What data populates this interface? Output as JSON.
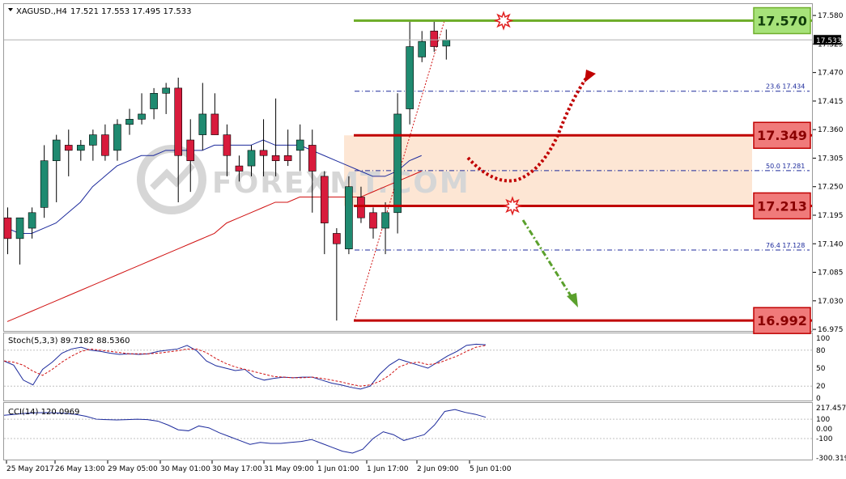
{
  "header": {
    "symbol": "XAGUSD.,H4",
    "ohlc": "17.521 17.553 17.495 17.533"
  },
  "chart_data": {
    "type": "candlestick",
    "price_axis": {
      "ylim": [
        16.972,
        17.602
      ],
      "ticks": [
        "17.580",
        "17.525",
        "17.470",
        "17.415",
        "17.360",
        "17.305",
        "17.250",
        "17.195",
        "17.140",
        "17.085",
        "17.030",
        "16.975"
      ],
      "current_price": "17.533"
    },
    "time_axis": {
      "labels": [
        "25 May 2017",
        "26 May 13:00",
        "29 May 05:00",
        "30 May 01:00",
        "30 May 17:00",
        "31 May 09:00",
        "1 Jun 01:00",
        "1 Jun 17:00",
        "2 Jun 09:00",
        "5 Jun 01:00"
      ]
    },
    "candles": [
      {
        "o": 17.19,
        "h": 17.21,
        "l": 17.12,
        "c": 17.15
      },
      {
        "o": 17.15,
        "h": 17.19,
        "l": 17.1,
        "c": 17.19
      },
      {
        "o": 17.17,
        "h": 17.21,
        "l": 17.15,
        "c": 17.2
      },
      {
        "o": 17.21,
        "h": 17.33,
        "l": 17.19,
        "c": 17.3
      },
      {
        "o": 17.3,
        "h": 17.35,
        "l": 17.22,
        "c": 17.34
      },
      {
        "o": 17.33,
        "h": 17.36,
        "l": 17.27,
        "c": 17.32
      },
      {
        "o": 17.32,
        "h": 17.34,
        "l": 17.3,
        "c": 17.33
      },
      {
        "o": 17.33,
        "h": 17.36,
        "l": 17.3,
        "c": 17.35
      },
      {
        "o": 17.35,
        "h": 17.37,
        "l": 17.3,
        "c": 17.31
      },
      {
        "o": 17.32,
        "h": 17.38,
        "l": 17.3,
        "c": 17.37
      },
      {
        "o": 17.37,
        "h": 17.4,
        "l": 17.35,
        "c": 17.38
      },
      {
        "o": 17.38,
        "h": 17.43,
        "l": 17.37,
        "c": 17.39
      },
      {
        "o": 17.4,
        "h": 17.44,
        "l": 17.38,
        "c": 17.43
      },
      {
        "o": 17.43,
        "h": 17.45,
        "l": 17.39,
        "c": 17.44
      },
      {
        "o": 17.44,
        "h": 17.46,
        "l": 17.22,
        "c": 17.31
      },
      {
        "o": 17.34,
        "h": 17.38,
        "l": 17.24,
        "c": 17.3
      },
      {
        "o": 17.35,
        "h": 17.45,
        "l": 17.32,
        "c": 17.39
      },
      {
        "o": 17.39,
        "h": 17.43,
        "l": 17.35,
        "c": 17.35
      },
      {
        "o": 17.35,
        "h": 17.37,
        "l": 17.27,
        "c": 17.31
      },
      {
        "o": 17.29,
        "h": 17.31,
        "l": 17.26,
        "c": 17.28
      },
      {
        "o": 17.29,
        "h": 17.33,
        "l": 17.27,
        "c": 17.32
      },
      {
        "o": 17.32,
        "h": 17.38,
        "l": 17.27,
        "c": 17.31
      },
      {
        "o": 17.31,
        "h": 17.42,
        "l": 17.27,
        "c": 17.3
      },
      {
        "o": 17.31,
        "h": 17.36,
        "l": 17.29,
        "c": 17.3
      },
      {
        "o": 17.32,
        "h": 17.37,
        "l": 17.28,
        "c": 17.34
      },
      {
        "o": 17.33,
        "h": 17.36,
        "l": 17.2,
        "c": 17.28
      },
      {
        "o": 17.27,
        "h": 17.28,
        "l": 17.12,
        "c": 17.18
      },
      {
        "o": 17.16,
        "h": 17.17,
        "l": 16.992,
        "c": 17.14
      },
      {
        "o": 17.13,
        "h": 17.27,
        "l": 17.12,
        "c": 17.25
      },
      {
        "o": 17.23,
        "h": 17.25,
        "l": 17.18,
        "c": 17.19
      },
      {
        "o": 17.2,
        "h": 17.21,
        "l": 17.15,
        "c": 17.17
      },
      {
        "o": 17.17,
        "h": 17.22,
        "l": 17.12,
        "c": 17.2
      },
      {
        "o": 17.2,
        "h": 17.43,
        "l": 17.16,
        "c": 17.39
      },
      {
        "o": 17.4,
        "h": 17.57,
        "l": 17.37,
        "c": 17.52
      },
      {
        "o": 17.5,
        "h": 17.55,
        "l": 17.49,
        "c": 17.53
      },
      {
        "o": 17.55,
        "h": 17.57,
        "l": 17.51,
        "c": 17.52
      },
      {
        "o": 17.521,
        "h": 17.553,
        "l": 17.495,
        "c": 17.533
      }
    ],
    "moving_averages": [
      {
        "color": "#1c2a9c",
        "values": [
          17.17,
          17.16,
          17.16,
          17.17,
          17.18,
          17.2,
          17.22,
          17.25,
          17.27,
          17.29,
          17.3,
          17.31,
          17.31,
          17.32,
          17.32,
          17.32,
          17.32,
          17.33,
          17.33,
          17.33,
          17.33,
          17.34,
          17.33,
          17.33,
          17.33,
          17.32,
          17.31,
          17.3,
          17.29,
          17.28,
          17.27,
          17.27,
          17.28,
          17.3,
          17.31
        ]
      },
      {
        "color": "#d01010",
        "values": [
          16.99,
          17.0,
          17.01,
          17.02,
          17.03,
          17.04,
          17.05,
          17.06,
          17.07,
          17.08,
          17.09,
          17.1,
          17.11,
          17.12,
          17.13,
          17.14,
          17.15,
          17.16,
          17.18,
          17.19,
          17.2,
          17.21,
          17.22,
          17.22,
          17.23,
          17.23,
          17.23,
          17.23,
          17.23,
          17.23,
          17.24,
          17.25,
          17.26,
          17.27,
          17.28
        ]
      }
    ],
    "levels": [
      {
        "value": 17.57,
        "label": "17.570",
        "color": "#6fae2b",
        "badge_bg": "#a6e279",
        "badge_text": "#103d0a"
      },
      {
        "value": 17.349,
        "label": "17.349",
        "color": "#c00000",
        "badge_bg": "#f07a7a",
        "badge_text": "#8a0000"
      },
      {
        "value": 17.213,
        "label": "17.213",
        "color": "#c00000",
        "badge_bg": "#f07a7a",
        "badge_text": "#8a0000"
      },
      {
        "value": 16.992,
        "label": "16.992",
        "color": "#c00000",
        "badge_bg": "#f07a7a",
        "badge_text": "#8a0000"
      }
    ],
    "fib_levels": [
      {
        "value": 17.434,
        "label": "23.6   17.434"
      },
      {
        "value": 17.281,
        "label": "50.0   17.281"
      },
      {
        "value": 17.128,
        "label": "76.4   17.128"
      }
    ],
    "zone": {
      "low": 17.213,
      "high": 17.349,
      "color": "#fde6d4"
    },
    "watermark": "FOREXMT.COM",
    "colors": {
      "bull": "#1f8a70",
      "bear": "#d81b3c",
      "up_arrow": "#c00000",
      "down_arrow": "#5aa02c"
    }
  },
  "stochastic": {
    "label": "Stoch(5,3,3) 89.7182 88.5360",
    "ticks": [
      "100",
      "80",
      "50",
      "20",
      "0"
    ],
    "k": [
      62,
      55,
      30,
      22,
      48,
      60,
      75,
      82,
      85,
      80,
      78,
      75,
      73,
      74,
      73,
      74,
      78,
      80,
      82,
      88,
      79,
      62,
      54,
      50,
      46,
      48,
      35,
      30,
      33,
      35,
      34,
      35,
      35,
      30,
      25,
      22,
      18,
      15,
      20,
      40,
      55,
      65,
      60,
      55,
      50,
      60,
      70,
      78,
      88,
      90,
      89
    ],
    "d": [
      62,
      60,
      55,
      45,
      38,
      48,
      60,
      70,
      78,
      82,
      80,
      78,
      76,
      74,
      74,
      74,
      75,
      77,
      79,
      82,
      82,
      76,
      66,
      58,
      52,
      48,
      44,
      40,
      36,
      35,
      34,
      34,
      35,
      33,
      30,
      27,
      23,
      20,
      22,
      28,
      38,
      52,
      58,
      60,
      56,
      58,
      64,
      70,
      78,
      85,
      88
    ]
  },
  "cci": {
    "label": "CCI(14) 120.0969",
    "ticks": [
      "217.4573",
      "100",
      "0.00",
      "-100",
      "-300.319"
    ],
    "values": [
      140,
      150,
      160,
      165,
      168,
      165,
      160,
      150,
      130,
      100,
      95,
      92,
      95,
      100,
      95,
      80,
      40,
      -10,
      -20,
      30,
      10,
      -40,
      -80,
      -120,
      -160,
      -140,
      -150,
      -150,
      -140,
      -130,
      -110,
      -150,
      -190,
      -230,
      -250,
      -210,
      -100,
      -30,
      -60,
      -120,
      -90,
      -60,
      40,
      180,
      200,
      170,
      150,
      120
    ]
  }
}
